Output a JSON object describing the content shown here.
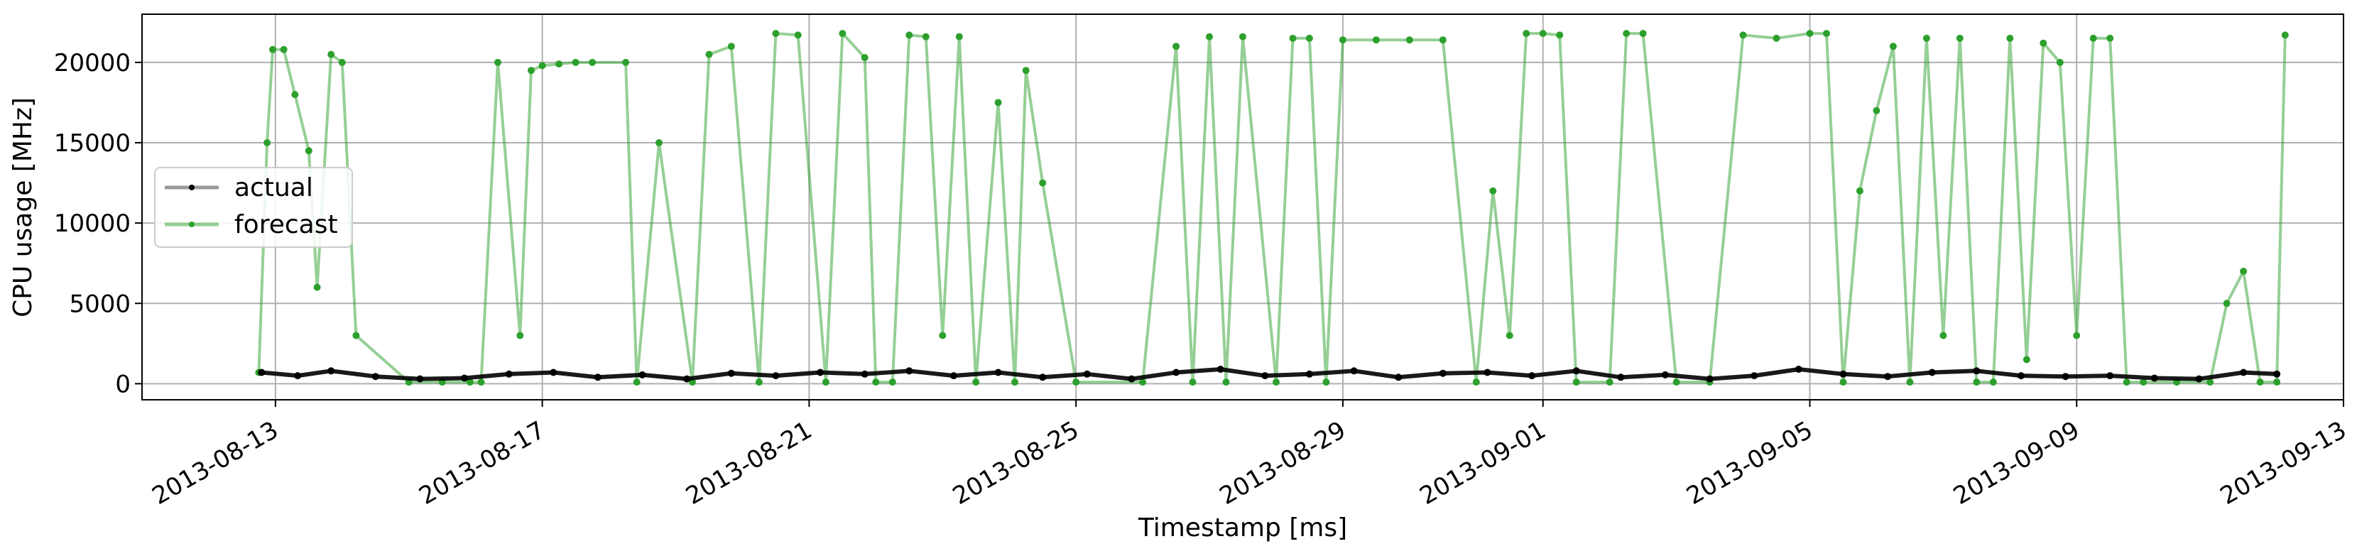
{
  "chart_data": {
    "type": "line",
    "xlabel": "Timestamp [ms]",
    "ylabel": "CPU usage [MHz]",
    "xlim": [
      "2013-08-11",
      "2013-09-13"
    ],
    "ylim": [
      -1000,
      23000
    ],
    "grid": true,
    "legend_position": "center-left",
    "x_ticks": [
      "2013-08-13",
      "2013-08-17",
      "2013-08-21",
      "2013-08-25",
      "2013-08-29",
      "2013-09-01",
      "2013-09-05",
      "2013-09-09",
      "2013-09-13"
    ],
    "y_ticks": [
      0,
      5000,
      10000,
      15000,
      20000
    ],
    "series": [
      {
        "name": "actual",
        "color": "#000000",
        "x": [
          "2013-08-12 19:00",
          "2013-08-13 08:00",
          "2013-08-13 20:00",
          "2013-08-14 12:00",
          "2013-08-15 04:00",
          "2013-08-15 20:00",
          "2013-08-16 12:00",
          "2013-08-17 04:00",
          "2013-08-17 20:00",
          "2013-08-18 12:00",
          "2013-08-19 04:00",
          "2013-08-19 20:00",
          "2013-08-20 12:00",
          "2013-08-21 04:00",
          "2013-08-21 20:00",
          "2013-08-22 12:00",
          "2013-08-23 04:00",
          "2013-08-23 20:00",
          "2013-08-24 12:00",
          "2013-08-25 04:00",
          "2013-08-25 20:00",
          "2013-08-26 12:00",
          "2013-08-27 04:00",
          "2013-08-27 20:00",
          "2013-08-28 12:00",
          "2013-08-29 04:00",
          "2013-08-29 20:00",
          "2013-08-30 12:00",
          "2013-08-31 04:00",
          "2013-08-31 20:00",
          "2013-09-01 12:00",
          "2013-09-02 04:00",
          "2013-09-02 20:00",
          "2013-09-03 12:00",
          "2013-09-04 04:00",
          "2013-09-04 20:00",
          "2013-09-05 12:00",
          "2013-09-06 04:00",
          "2013-09-06 20:00",
          "2013-09-07 12:00",
          "2013-09-08 04:00",
          "2013-09-08 20:00",
          "2013-09-09 12:00",
          "2013-09-10 04:00",
          "2013-09-10 20:00",
          "2013-09-11 12:00",
          "2013-09-12 00:00"
        ],
        "y": [
          700,
          500,
          800,
          450,
          300,
          350,
          600,
          700,
          400,
          550,
          300,
          650,
          500,
          700,
          600,
          800,
          500,
          700,
          400,
          600,
          300,
          700,
          900,
          500,
          600,
          800,
          400,
          650,
          700,
          500,
          800,
          400,
          550,
          300,
          500,
          900,
          600,
          450,
          700,
          800,
          500,
          450,
          500,
          350,
          300,
          700,
          600
        ]
      },
      {
        "name": "forecast",
        "color": "#2ca02c",
        "x": [
          "2013-08-12 18:00",
          "2013-08-12 21:00",
          "2013-08-12 23:00",
          "2013-08-13 03:00",
          "2013-08-13 07:00",
          "2013-08-13 12:00",
          "2013-08-13 15:00",
          "2013-08-13 20:00",
          "2013-08-14 00:00",
          "2013-08-14 05:00",
          "2013-08-15 00:00",
          "2013-08-15 12:00",
          "2013-08-15 22:00",
          "2013-08-16 02:00",
          "2013-08-16 08:00",
          "2013-08-16 16:00",
          "2013-08-16 20:00",
          "2013-08-17 00:00",
          "2013-08-17 06:00",
          "2013-08-17 12:00",
          "2013-08-17 18:00",
          "2013-08-18 06:00",
          "2013-08-18 10:00",
          "2013-08-18 18:00",
          "2013-08-19 06:00",
          "2013-08-19 12:00",
          "2013-08-19 20:00",
          "2013-08-20 06:00",
          "2013-08-20 12:00",
          "2013-08-20 20:00",
          "2013-08-21 06:00",
          "2013-08-21 12:00",
          "2013-08-21 20:00",
          "2013-08-22 00:00",
          "2013-08-22 06:00",
          "2013-08-22 12:00",
          "2013-08-22 18:00",
          "2013-08-23 00:00",
          "2013-08-23 06:00",
          "2013-08-23 12:00",
          "2013-08-23 20:00",
          "2013-08-24 02:00",
          "2013-08-24 06:00",
          "2013-08-24 12:00",
          "2013-08-25 00:00",
          "2013-08-26 00:00",
          "2013-08-26 12:00",
          "2013-08-26 18:00",
          "2013-08-27 00:00",
          "2013-08-27 06:00",
          "2013-08-27 12:00",
          "2013-08-28 00:00",
          "2013-08-28 06:00",
          "2013-08-28 12:00",
          "2013-08-28 18:00",
          "2013-08-29 00:00",
          "2013-08-29 12:00",
          "2013-08-30 00:00",
          "2013-08-30 12:00",
          "2013-08-31 00:00",
          "2013-08-31 06:00",
          "2013-08-31 12:00",
          "2013-08-31 18:00",
          "2013-09-01 00:00",
          "2013-09-01 06:00",
          "2013-09-01 12:00",
          "2013-09-02 00:00",
          "2013-09-02 06:00",
          "2013-09-02 12:00",
          "2013-09-03 00:00",
          "2013-09-03 12:00",
          "2013-09-04 00:00",
          "2013-09-04 12:00",
          "2013-09-05 00:00",
          "2013-09-05 06:00",
          "2013-09-05 12:00",
          "2013-09-05 18:00",
          "2013-09-06 00:00",
          "2013-09-06 06:00",
          "2013-09-06 12:00",
          "2013-09-06 18:00",
          "2013-09-07 00:00",
          "2013-09-07 06:00",
          "2013-09-07 12:00",
          "2013-09-07 18:00",
          "2013-09-08 00:00",
          "2013-09-08 06:00",
          "2013-09-08 12:00",
          "2013-09-08 18:00",
          "2013-09-09 00:00",
          "2013-09-09 06:00",
          "2013-09-09 12:00",
          "2013-09-09 18:00",
          "2013-09-10 00:00",
          "2013-09-10 12:00",
          "2013-09-11 00:00",
          "2013-09-11 06:00",
          "2013-09-11 12:00",
          "2013-09-11 18:00",
          "2013-09-12 00:00",
          "2013-09-12 03:00"
        ],
        "y": [
          700,
          15000,
          20800,
          20800,
          18000,
          14500,
          6000,
          20500,
          20000,
          3000,
          100,
          100,
          100,
          100,
          20000,
          3000,
          19500,
          19800,
          19900,
          20000,
          20000,
          20000,
          100,
          15000,
          100,
          20500,
          21000,
          100,
          21800,
          21700,
          100,
          21800,
          20300,
          100,
          100,
          21700,
          21600,
          3000,
          21600,
          100,
          17500,
          100,
          19500,
          12500,
          100,
          100,
          21000,
          100,
          21600,
          100,
          21600,
          100,
          21500,
          21500,
          100,
          21400,
          21400,
          21400,
          21400,
          100,
          12000,
          3000,
          21800,
          21800,
          21700,
          100,
          100,
          21800,
          21800,
          100,
          100,
          21700,
          21500,
          21800,
          21800,
          100,
          12000,
          17000,
          21000,
          100,
          21500,
          3000,
          21500,
          100,
          100,
          21500,
          1500,
          21200,
          20000,
          3000,
          21500,
          21500,
          100,
          100,
          100,
          100,
          5000,
          7000,
          100,
          100,
          21700
        ]
      }
    ]
  }
}
